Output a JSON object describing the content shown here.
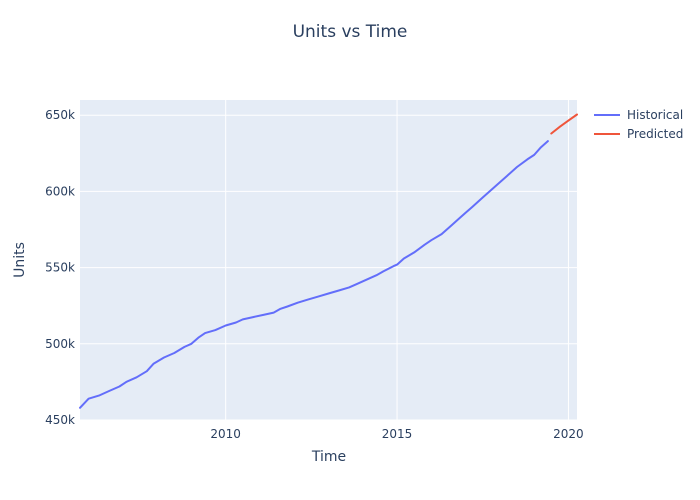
{
  "chart_data": {
    "type": "line",
    "title": "Units vs Time",
    "xlabel": "Time",
    "ylabel": "Units",
    "xlim": [
      2005.75,
      2020.25
    ],
    "ylim": [
      450000,
      660000
    ],
    "x_ticks": [
      2010,
      2015,
      2020
    ],
    "x_tick_labels": [
      "2010",
      "2015",
      "2020"
    ],
    "y_ticks": [
      450000,
      500000,
      550000,
      600000,
      650000
    ],
    "y_tick_labels": [
      "450k",
      "500k",
      "550k",
      "600k",
      "650k"
    ],
    "grid": true,
    "legend_position": "top-right, outside plot area",
    "series": [
      {
        "name": "Historical",
        "color": "#636efa",
        "x": [
          2005.75,
          2006.0,
          2006.3,
          2006.6,
          2006.9,
          2007.1,
          2007.4,
          2007.7,
          2007.9,
          2008.2,
          2008.5,
          2008.8,
          2009.0,
          2009.2,
          2009.4,
          2009.7,
          2010.0,
          2010.3,
          2010.5,
          2010.8,
          2011.1,
          2011.4,
          2011.6,
          2011.8,
          2012.1,
          2012.4,
          2012.7,
          2013.0,
          2013.3,
          2013.6,
          2013.8,
          2014.1,
          2014.4,
          2014.6,
          2014.9,
          2015.0,
          2015.2,
          2015.5,
          2015.8,
          2016.0,
          2016.3,
          2016.6,
          2016.8,
          2017.0,
          2017.2,
          2017.5,
          2017.8,
          2018.0,
          2018.2,
          2018.5,
          2018.8,
          2019.0,
          2019.2,
          2019.4
        ],
        "y": [
          458000,
          464000,
          466000,
          469000,
          472000,
          475000,
          478000,
          482000,
          487000,
          491000,
          494000,
          498000,
          500000,
          504000,
          507000,
          509000,
          512000,
          514000,
          516000,
          517500,
          519000,
          520500,
          523000,
          524500,
          527000,
          529000,
          531000,
          533000,
          535000,
          537000,
          539000,
          542000,
          545000,
          547500,
          551000,
          552000,
          556000,
          560000,
          565000,
          568000,
          572000,
          578000,
          582000,
          586000,
          590000,
          596000,
          602000,
          606000,
          610000,
          616000,
          621000,
          624000,
          629000,
          633000
        ]
      },
      {
        "name": "Predicted",
        "color": "#ef553b",
        "x": [
          2019.5,
          2019.75,
          2020.0,
          2020.25
        ],
        "y": [
          638000,
          642500,
          646500,
          650500
        ]
      }
    ]
  }
}
